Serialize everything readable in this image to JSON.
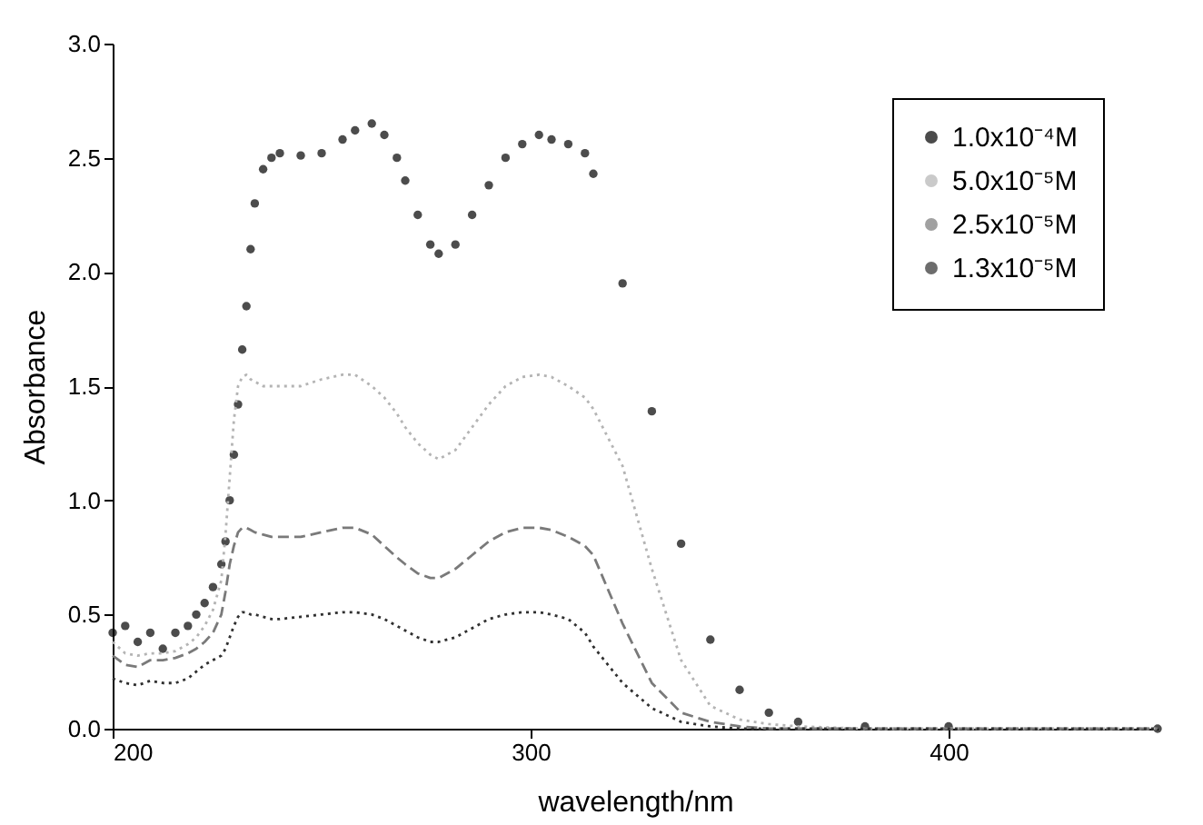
{
  "chart_data": {
    "type": "line",
    "xlabel": "wavelength/nm",
    "ylabel": "Absorbance",
    "x": [
      200,
      203,
      206,
      209,
      212,
      215,
      218,
      220,
      222,
      224,
      226,
      227,
      228,
      229,
      230,
      231,
      232,
      233,
      234,
      236,
      238,
      240,
      245,
      250,
      255,
      258,
      262,
      265,
      268,
      270,
      273,
      276,
      278,
      282,
      286,
      290,
      294,
      298,
      302,
      305,
      309,
      313,
      315,
      322,
      329,
      336,
      343,
      350,
      357,
      364,
      380,
      400,
      450
    ],
    "series": [
      {
        "name": "1.0x10⁻⁴M",
        "type": "scatter",
        "marker": "circle",
        "color": "#000000",
        "values": [
          0.42,
          0.45,
          0.38,
          0.42,
          0.35,
          0.42,
          0.45,
          0.5,
          0.55,
          0.62,
          0.72,
          0.82,
          1.0,
          1.2,
          1.42,
          1.66,
          1.85,
          2.1,
          2.3,
          2.45,
          2.5,
          2.52,
          2.51,
          2.52,
          2.58,
          2.62,
          2.65,
          2.6,
          2.5,
          2.4,
          2.25,
          2.12,
          2.08,
          2.12,
          2.25,
          2.38,
          2.5,
          2.56,
          2.6,
          2.58,
          2.56,
          2.52,
          2.43,
          1.95,
          1.39,
          0.81,
          0.39,
          0.17,
          0.07,
          0.03,
          0.01,
          0.01,
          0.0
        ]
      },
      {
        "name": "5.0x10⁻⁵M",
        "line_style": "dotted",
        "color": "#b4b4b4",
        "values": [
          0.38,
          0.33,
          0.32,
          0.33,
          0.33,
          0.34,
          0.37,
          0.4,
          0.45,
          0.52,
          0.65,
          0.85,
          1.1,
          1.35,
          1.5,
          1.54,
          1.55,
          1.53,
          1.52,
          1.5,
          1.5,
          1.5,
          1.5,
          1.53,
          1.55,
          1.55,
          1.5,
          1.45,
          1.38,
          1.32,
          1.25,
          1.2,
          1.18,
          1.22,
          1.32,
          1.42,
          1.5,
          1.54,
          1.55,
          1.54,
          1.5,
          1.45,
          1.4,
          1.15,
          0.7,
          0.3,
          0.1,
          0.04,
          0.02,
          0.01,
          0.0,
          0.0,
          0.0
        ]
      },
      {
        "name": "2.5x10⁻⁵M",
        "line_style": "dashed",
        "color": "#7a7a7a",
        "values": [
          0.32,
          0.28,
          0.27,
          0.3,
          0.3,
          0.31,
          0.33,
          0.35,
          0.38,
          0.42,
          0.5,
          0.6,
          0.72,
          0.8,
          0.86,
          0.88,
          0.88,
          0.87,
          0.86,
          0.85,
          0.84,
          0.84,
          0.84,
          0.86,
          0.88,
          0.88,
          0.85,
          0.8,
          0.75,
          0.72,
          0.68,
          0.66,
          0.66,
          0.7,
          0.76,
          0.82,
          0.86,
          0.88,
          0.88,
          0.87,
          0.84,
          0.8,
          0.76,
          0.46,
          0.2,
          0.07,
          0.03,
          0.01,
          0.0,
          0.0,
          0.0,
          0.0,
          0.0
        ]
      },
      {
        "name": "1.3x10⁻⁵M",
        "line_style": "dotted",
        "color": "#303030",
        "values": [
          0.22,
          0.2,
          0.19,
          0.21,
          0.2,
          0.2,
          0.22,
          0.25,
          0.28,
          0.3,
          0.32,
          0.35,
          0.4,
          0.45,
          0.49,
          0.51,
          0.51,
          0.5,
          0.5,
          0.49,
          0.48,
          0.48,
          0.49,
          0.5,
          0.51,
          0.51,
          0.5,
          0.48,
          0.45,
          0.43,
          0.4,
          0.38,
          0.38,
          0.4,
          0.44,
          0.48,
          0.5,
          0.51,
          0.51,
          0.5,
          0.48,
          0.42,
          0.36,
          0.2,
          0.09,
          0.03,
          0.01,
          0.0,
          0.0,
          0.0,
          0.0,
          0.0,
          0.0
        ]
      }
    ],
    "xlim": [
      200,
      450
    ],
    "xticks": [
      200,
      300,
      400
    ],
    "ylim": [
      0,
      3.0
    ],
    "yticks": [
      {
        "value": 0,
        "label": "0.0"
      },
      {
        "value": 0.5,
        "label": "0.5"
      },
      {
        "value": 1,
        "label": "1.0"
      },
      {
        "value": 1.5,
        "label": "1.5"
      },
      {
        "value": 2,
        "label": "2.0"
      },
      {
        "value": 2.5,
        "label": "2.5"
      },
      {
        "value": 3,
        "label": "3.0"
      }
    ],
    "grid": false,
    "legend": "top right"
  }
}
